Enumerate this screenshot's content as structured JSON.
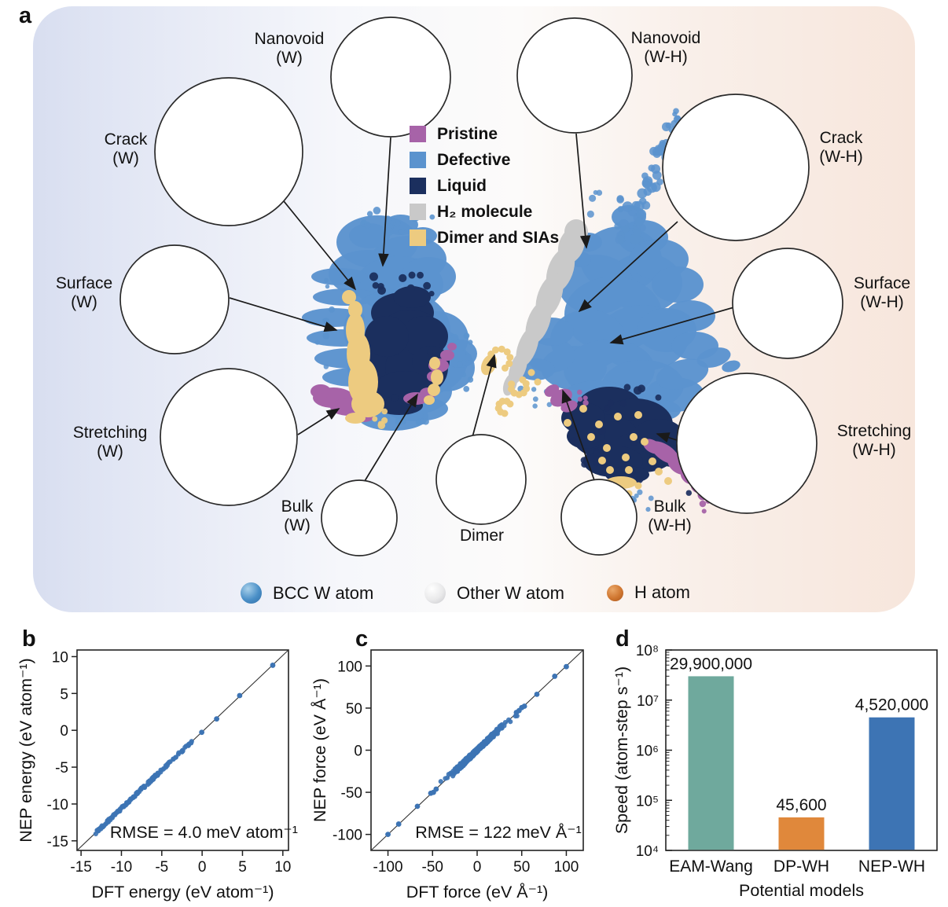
{
  "panels": {
    "a": {
      "letter": "a"
    },
    "b": {
      "letter": "b"
    },
    "c": {
      "letter": "c"
    },
    "d": {
      "letter": "d"
    }
  },
  "panel_a": {
    "insets": [
      {
        "id": "nanovoid-w",
        "label": "Nanovoid\n(W)"
      },
      {
        "id": "crack-w",
        "label": "Crack\n(W)"
      },
      {
        "id": "surface-w",
        "label": "Surface\n(W)"
      },
      {
        "id": "stretching-w",
        "label": "Stretching\n(W)"
      },
      {
        "id": "bulk-w",
        "label": "Bulk\n(W)"
      },
      {
        "id": "dimer",
        "label": "Dimer"
      },
      {
        "id": "bulk-wh",
        "label": "Bulk\n(W-H)"
      },
      {
        "id": "stretching-wh",
        "label": "Stretching\n(W-H)"
      },
      {
        "id": "surface-wh",
        "label": "Surface\n(W-H)"
      },
      {
        "id": "crack-wh",
        "label": "Crack\n(W-H)"
      },
      {
        "id": "nanovoid-wh",
        "label": "Nanovoid\n(W-H)"
      }
    ],
    "legend": [
      {
        "label": "Pristine",
        "color": "#a763a8"
      },
      {
        "label": "Defective",
        "color": "#5b93ce"
      },
      {
        "label": "Liquid",
        "color": "#1b2f5e"
      },
      {
        "label": "H₂ molecule",
        "color": "#c9c9c9"
      },
      {
        "label": "Dimer and SIAs",
        "color": "#edcb80"
      }
    ],
    "atom_legend": [
      {
        "label": "BCC W atom",
        "color": "#4a8fc7",
        "size": 27
      },
      {
        "label": "Other W atom",
        "color": "#ececee",
        "size": 27
      },
      {
        "label": "H atom",
        "color": "#cf7630",
        "size": 21
      }
    ]
  },
  "chart_data": [
    {
      "panel": "b",
      "type": "scatter",
      "xlabel": "DFT energy (eV atom⁻¹)",
      "ylabel": "NEP energy (eV atom⁻¹)",
      "xlim": [
        -15.5,
        10.7
      ],
      "ylim": [
        -16.3,
        10.9
      ],
      "xticks": [
        -15,
        -10,
        -5,
        0,
        5,
        10
      ],
      "yticks": [
        -15,
        -10,
        -5,
        0,
        5,
        10
      ],
      "diagonal": true,
      "annotation": "RMSE = 4.0 meV atom⁻¹",
      "marker_color": "#3d74b4",
      "dense_band": {
        "min": -13.2,
        "max": -1.0,
        "count": 150,
        "jitter": 0.18,
        "dist": "pow"
      },
      "outliers": [
        -0.05,
        1.8,
        4.65,
        8.75
      ]
    },
    {
      "panel": "c",
      "type": "scatter",
      "xlabel": "DFT force (eV Å⁻¹)",
      "ylabel": "NEP force (eV Å⁻¹)",
      "xlim": [
        -119,
        119
      ],
      "ylim": [
        -119,
        119
      ],
      "xticks": [
        -100,
        -50,
        0,
        50,
        100
      ],
      "yticks": [
        -100,
        -50,
        0,
        50,
        100
      ],
      "diagonal": true,
      "annotation": "RMSE = 122 meV Å⁻¹",
      "marker_color": "#3d74b4",
      "dense_band": {
        "min": -45,
        "max": 45,
        "count": 320,
        "jitter": 2.2,
        "dist": "gauss"
      },
      "outliers": [
        -100,
        -88,
        -67,
        -52,
        -49,
        -46,
        44,
        47,
        50,
        53,
        67,
        87,
        100
      ]
    },
    {
      "panel": "d",
      "type": "bar",
      "categories": [
        "EAM-Wang",
        "DP-WH",
        "NEP-WH"
      ],
      "values": [
        29900000,
        45600,
        4520000
      ],
      "value_labels": [
        "29,900,000",
        "45,600",
        "4,520,000"
      ],
      "bar_colors": [
        "#6fa99d",
        "#e0883b",
        "#3d74b4"
      ],
      "xlabel": "Potential models",
      "ylabel": "Speed (atom-step s⁻¹)",
      "yscale": "log",
      "ylim": [
        10000,
        100000000
      ],
      "ytick_labels": [
        "10⁴",
        "10⁵",
        "10⁶",
        "10⁷",
        "10⁸"
      ]
    }
  ]
}
